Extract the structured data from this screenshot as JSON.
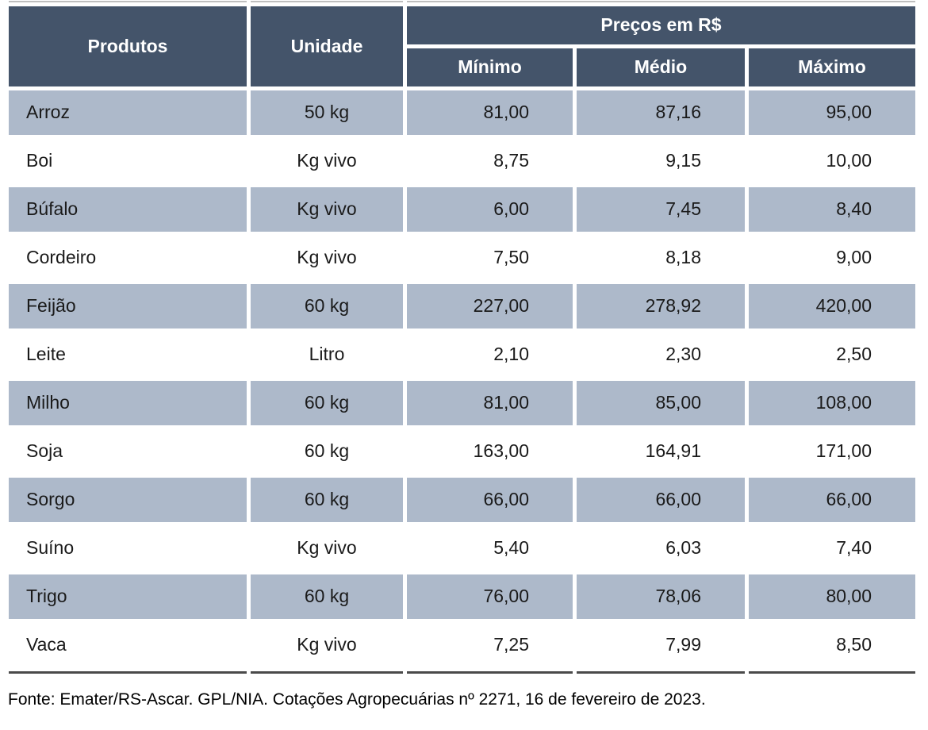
{
  "table": {
    "headers": {
      "produtos": "Produtos",
      "unidade": "Unidade",
      "precos_group": "Preços em R$",
      "minimo": "Mínimo",
      "medio": "Médio",
      "maximo": "Máximo"
    },
    "rows": [
      {
        "produto": "Arroz",
        "unidade": "50 kg",
        "minimo": "81,00",
        "medio": "87,16",
        "maximo": "95,00"
      },
      {
        "produto": "Boi",
        "unidade": "Kg vivo",
        "minimo": "8,75",
        "medio": "9,15",
        "maximo": "10,00"
      },
      {
        "produto": "Búfalo",
        "unidade": "Kg vivo",
        "minimo": "6,00",
        "medio": "7,45",
        "maximo": "8,40"
      },
      {
        "produto": "Cordeiro",
        "unidade": "Kg vivo",
        "minimo": "7,50",
        "medio": "8,18",
        "maximo": "9,00"
      },
      {
        "produto": "Feijão",
        "unidade": "60 kg",
        "minimo": "227,00",
        "medio": "278,92",
        "maximo": "420,00"
      },
      {
        "produto": "Leite",
        "unidade": "Litro",
        "minimo": "2,10",
        "medio": "2,30",
        "maximo": "2,50"
      },
      {
        "produto": "Milho",
        "unidade": "60 kg",
        "minimo": "81,00",
        "medio": "85,00",
        "maximo": "108,00"
      },
      {
        "produto": "Soja",
        "unidade": "60 kg",
        "minimo": "163,00",
        "medio": "164,91",
        "maximo": "171,00"
      },
      {
        "produto": "Sorgo",
        "unidade": "60 kg",
        "minimo": "66,00",
        "medio": "66,00",
        "maximo": "66,00"
      },
      {
        "produto": "Suíno",
        "unidade": "Kg vivo",
        "minimo": "5,40",
        "medio": "6,03",
        "maximo": "7,40"
      },
      {
        "produto": "Trigo",
        "unidade": "60 kg",
        "minimo": "76,00",
        "medio": "78,06",
        "maximo": "80,00"
      },
      {
        "produto": "Vaca",
        "unidade": "Kg vivo",
        "minimo": "7,25",
        "medio": "7,99",
        "maximo": "8,50"
      }
    ]
  },
  "footer": {
    "source_note": "Fonte: Emater/RS-Ascar. GPL/NIA. Cotações Agropecuárias nº 2271, 16 de fevereiro de 2023."
  },
  "colors": {
    "header_bg": "#44546A",
    "stripe_bg": "#ADB9CA",
    "header_text": "#FFFFFF",
    "body_text": "#1A1A1A",
    "top_rule": "#BFBFBF",
    "bottom_rule": "#4A4A4A"
  }
}
